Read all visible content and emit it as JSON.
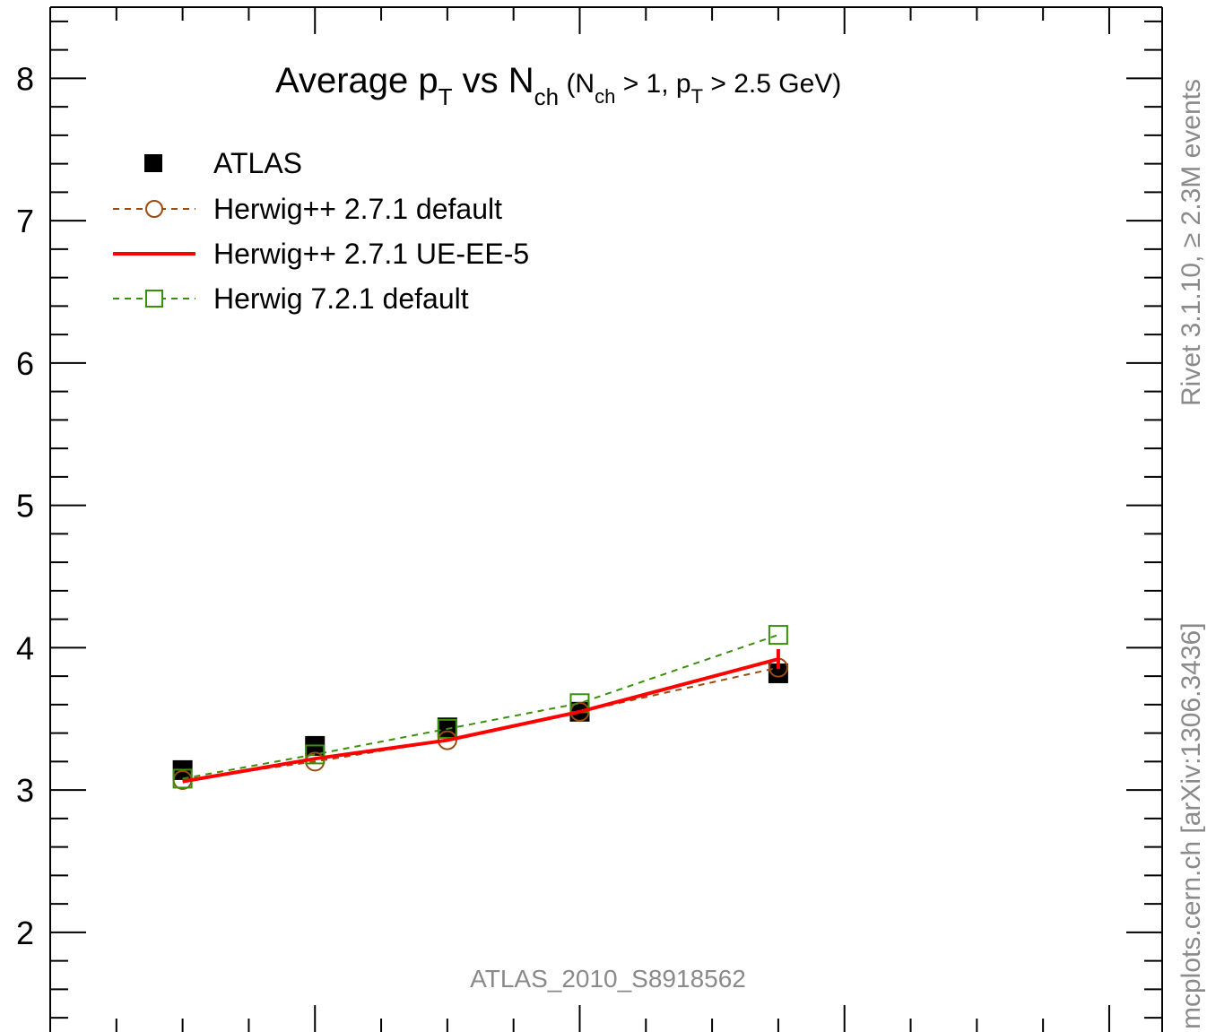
{
  "chart_data": {
    "type": "line",
    "title": "Average pT vs Nch (Nch > 1, pT > 2.5 GeV)",
    "title_parts": {
      "t1": "Average p",
      "t1_sub": "T",
      "t2": " vs N",
      "t2_sub": "ch",
      "t3": " (N",
      "t3_sub": "ch",
      "t4": " > 1, p",
      "t4_sub": "T",
      "t5": " > 2.5 GeV)"
    },
    "ylim": [
      1.3,
      8.5
    ],
    "y_ticks": [
      2,
      3,
      4,
      5,
      6,
      7,
      8
    ],
    "y_tick_labels": [
      "2",
      "3",
      "4",
      "5",
      "6",
      "7",
      "8"
    ],
    "x": [
      5,
      10,
      15,
      20,
      27.5
    ],
    "xlim": [
      0,
      42
    ],
    "legend_position": "top-left",
    "series": [
      {
        "name": "ATLAS",
        "marker": "filled-square",
        "color": "#000000",
        "values": [
          3.14,
          3.31,
          3.44,
          3.55,
          3.82
        ]
      },
      {
        "name": "Herwig++ 2.7.1 default",
        "marker": "open-circle",
        "color": "#9b4a10",
        "dash": "dashed",
        "values": [
          3.07,
          3.2,
          3.35,
          3.55,
          3.86
        ]
      },
      {
        "name": "Herwig++ 2.7.1 UE-EE-5",
        "marker": "none",
        "color": "#ff0000",
        "dash": "solid",
        "values": [
          3.06,
          3.22,
          3.35,
          3.55,
          3.92
        ],
        "error": [
          0,
          0,
          0,
          0,
          0.07
        ]
      },
      {
        "name": "Herwig 7.2.1 default",
        "marker": "open-square",
        "color": "#3a8f0a",
        "dash": "dashed",
        "values": [
          3.08,
          3.25,
          3.43,
          3.61,
          4.09
        ]
      }
    ],
    "analysis_label": "ATLAS_2010_S8918562",
    "side_label_top": "Rivet 3.1.10, ≥ 2.3M events",
    "side_label_bottom": "mcplots.cern.ch [arXiv:1306.3436]"
  }
}
